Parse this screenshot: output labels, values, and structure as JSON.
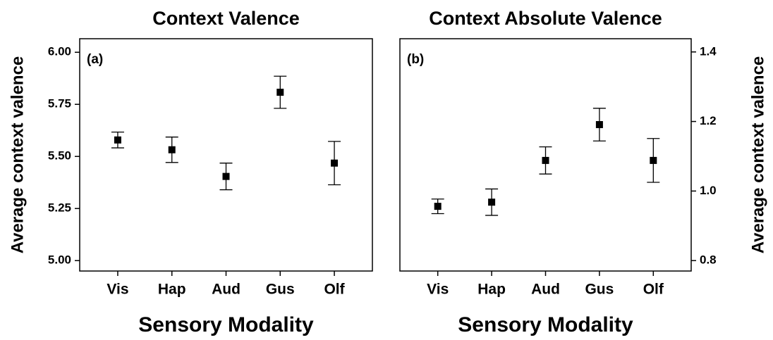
{
  "chart_data": [
    {
      "type": "errorbar",
      "title": "Context Valence",
      "panel_label": "(a)",
      "xlabel": "Sensory Modality",
      "ylabel": "Average context valence",
      "y_axis_side": "left",
      "categories": [
        "Vis",
        "Hap",
        "Aud",
        "Gus",
        "Olf"
      ],
      "values": [
        5.579,
        5.532,
        5.404,
        5.808,
        5.468
      ],
      "errors": [
        0.038,
        0.061,
        0.064,
        0.077,
        0.104
      ],
      "color": "#000000",
      "ylim": [
        4.95,
        6.065
      ],
      "yticks": [
        {
          "value": 5,
          "label": "5.00"
        },
        {
          "value": 5.25,
          "label": "5.25"
        },
        {
          "value": 5.5,
          "label": "5.50"
        },
        {
          "value": 5.75,
          "label": "5.75"
        },
        {
          "value": 6,
          "label": "6.00"
        }
      ]
    },
    {
      "type": "errorbar",
      "title": "Context Absolute Valence",
      "panel_label": "(b)",
      "xlabel": "Sensory Modality",
      "ylabel": "Average context valence",
      "y_axis_side": "right",
      "categories": [
        "Vis",
        "Hap",
        "Aud",
        "Gus",
        "Olf"
      ],
      "values": [
        0.956,
        0.968,
        1.088,
        1.191,
        1.088
      ],
      "errors": [
        0.021,
        0.038,
        0.039,
        0.047,
        0.063
      ],
      "color": "#000000",
      "ylim": [
        0.77,
        1.438
      ],
      "yticks": [
        0.8,
        {
          "value": 1,
          "label": "1.0"
        },
        1.2,
        1.4
      ]
    }
  ]
}
